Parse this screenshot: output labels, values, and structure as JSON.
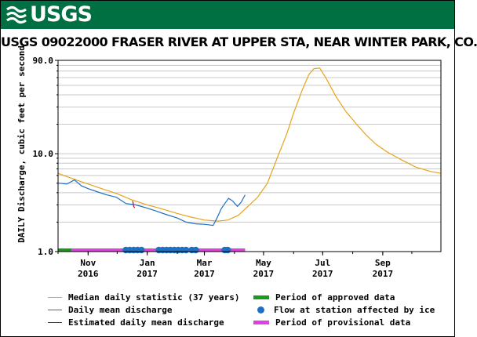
{
  "banner": {
    "logo_text": "USGS",
    "color": "#006f41"
  },
  "chart_data": {
    "type": "line",
    "title": "USGS 09022000 FRASER RIVER AT UPPER STA, NEAR WINTER PARK, CO.",
    "ylabel": "DAILY Discharge, cubic feet per second",
    "xlabel": "",
    "yscale": "log",
    "ylim": [
      1.0,
      90.0
    ],
    "yticks": [
      "1.0",
      "10.0",
      "90.0"
    ],
    "xlim": [
      "2016-10-01",
      "2017-10-31"
    ],
    "xticks": [
      {
        "date": "2016-11-01",
        "label1": "Nov",
        "label2": "2016"
      },
      {
        "date": "2017-01-01",
        "label1": "Jan",
        "label2": "2017"
      },
      {
        "date": "2017-03-01",
        "label1": "Mar",
        "label2": "2017"
      },
      {
        "date": "2017-05-01",
        "label1": "May",
        "label2": "2017"
      },
      {
        "date": "2017-07-01",
        "label1": "Jul",
        "label2": "2017"
      },
      {
        "date": "2017-09-01",
        "label1": "Sep",
        "label2": "2017"
      }
    ],
    "grid": true,
    "legend_position": "bottom",
    "series": [
      {
        "name": "Median daily statistic (37 years)",
        "color": "#e8a317",
        "points": [
          [
            "2016-10-01",
            6.3
          ],
          [
            "2016-10-15",
            5.6
          ],
          [
            "2016-11-01",
            4.9
          ],
          [
            "2016-11-15",
            4.4
          ],
          [
            "2016-12-01",
            3.9
          ],
          [
            "2016-12-15",
            3.4
          ],
          [
            "2017-01-01",
            3.0
          ],
          [
            "2017-01-15",
            2.75
          ],
          [
            "2017-02-01",
            2.45
          ],
          [
            "2017-02-15",
            2.25
          ],
          [
            "2017-03-01",
            2.1
          ],
          [
            "2017-03-15",
            2.05
          ],
          [
            "2017-03-25",
            2.1
          ],
          [
            "2017-04-05",
            2.35
          ],
          [
            "2017-04-15",
            2.9
          ],
          [
            "2017-04-25",
            3.6
          ],
          [
            "2017-05-05",
            5.0
          ],
          [
            "2017-05-15",
            9.0
          ],
          [
            "2017-05-25",
            16.0
          ],
          [
            "2017-06-01",
            26.0
          ],
          [
            "2017-06-10",
            45.0
          ],
          [
            "2017-06-17",
            65.0
          ],
          [
            "2017-06-22",
            74.0
          ],
          [
            "2017-06-28",
            75.0
          ],
          [
            "2017-07-05",
            58.0
          ],
          [
            "2017-07-15",
            38.0
          ],
          [
            "2017-07-25",
            27.0
          ],
          [
            "2017-08-05",
            20.0
          ],
          [
            "2017-08-15",
            15.5
          ],
          [
            "2017-08-25",
            12.5
          ],
          [
            "2017-09-05",
            10.5
          ],
          [
            "2017-09-20",
            8.7
          ],
          [
            "2017-10-05",
            7.3
          ],
          [
            "2017-10-20",
            6.6
          ],
          [
            "2017-10-31",
            6.3
          ]
        ]
      },
      {
        "name": "Daily mean discharge",
        "color": "#1f6fc5",
        "points": [
          [
            "2016-10-01",
            5.0
          ],
          [
            "2016-10-10",
            4.9
          ],
          [
            "2016-10-18",
            5.4
          ],
          [
            "2016-10-25",
            4.7
          ],
          [
            "2016-11-01",
            4.4
          ],
          [
            "2016-11-10",
            4.1
          ],
          [
            "2016-11-20",
            3.8
          ],
          [
            "2016-11-30",
            3.6
          ],
          [
            "2016-12-10",
            3.1
          ],
          [
            "2016-12-20",
            3.0
          ],
          [
            "2016-12-31",
            2.8
          ],
          [
            "2017-01-10",
            2.6
          ],
          [
            "2017-01-20",
            2.4
          ],
          [
            "2017-02-01",
            2.2
          ],
          [
            "2017-02-10",
            2.0
          ],
          [
            "2017-02-20",
            1.92
          ],
          [
            "2017-03-01",
            1.9
          ],
          [
            "2017-03-05",
            1.88
          ],
          [
            "2017-03-10",
            1.85
          ],
          [
            "2017-03-14",
            2.2
          ],
          [
            "2017-03-18",
            2.7
          ],
          [
            "2017-03-22",
            3.1
          ],
          [
            "2017-03-26",
            3.5
          ],
          [
            "2017-03-30",
            3.3
          ],
          [
            "2017-04-04",
            2.9
          ],
          [
            "2017-04-08",
            3.2
          ],
          [
            "2017-04-12",
            3.8
          ]
        ]
      },
      {
        "name": "Estimated daily mean discharge",
        "color": "#b01030",
        "points": [
          [
            "2016-12-17",
            3.3
          ],
          [
            "2016-12-18",
            2.9
          ],
          [
            "2016-12-19",
            2.8
          ]
        ]
      }
    ],
    "bands": [
      {
        "name": "Period of approved data",
        "color": "#1a9a1a",
        "from": "2016-10-01",
        "to": "2016-10-15"
      },
      {
        "name": "Period of provisional data",
        "color": "#e040e0",
        "from": "2016-10-15",
        "to": "2017-04-12"
      }
    ],
    "ice_markers": {
      "name": "Flow at station affected by ice",
      "color": "#1f6fc5",
      "dates": [
        "2016-12-10",
        "2016-12-14",
        "2016-12-18",
        "2016-12-22",
        "2016-12-26",
        "2017-01-13",
        "2017-01-17",
        "2017-01-21",
        "2017-01-25",
        "2017-01-29",
        "2017-02-02",
        "2017-02-06",
        "2017-02-10",
        "2017-02-16",
        "2017-02-20",
        "2017-03-22",
        "2017-03-25"
      ]
    }
  },
  "legend": [
    {
      "key": "median",
      "label": "Median daily statistic (37 years)",
      "kind": "line",
      "color": "#e8a317"
    },
    {
      "key": "approved",
      "label": "Period of approved data",
      "kind": "bar",
      "color": "#1a9a1a"
    },
    {
      "key": "daily",
      "label": "Daily mean discharge",
      "kind": "line",
      "color": "#1f6fc5"
    },
    {
      "key": "ice",
      "label": "Flow at station affected by ice",
      "kind": "dot",
      "color": "#1f6fc5"
    },
    {
      "key": "estimated",
      "label": "Estimated daily mean discharge",
      "kind": "line",
      "color": "#b01030"
    },
    {
      "key": "provisional",
      "label": "Period of provisional data",
      "kind": "bar",
      "color": "#e040e0"
    }
  ]
}
